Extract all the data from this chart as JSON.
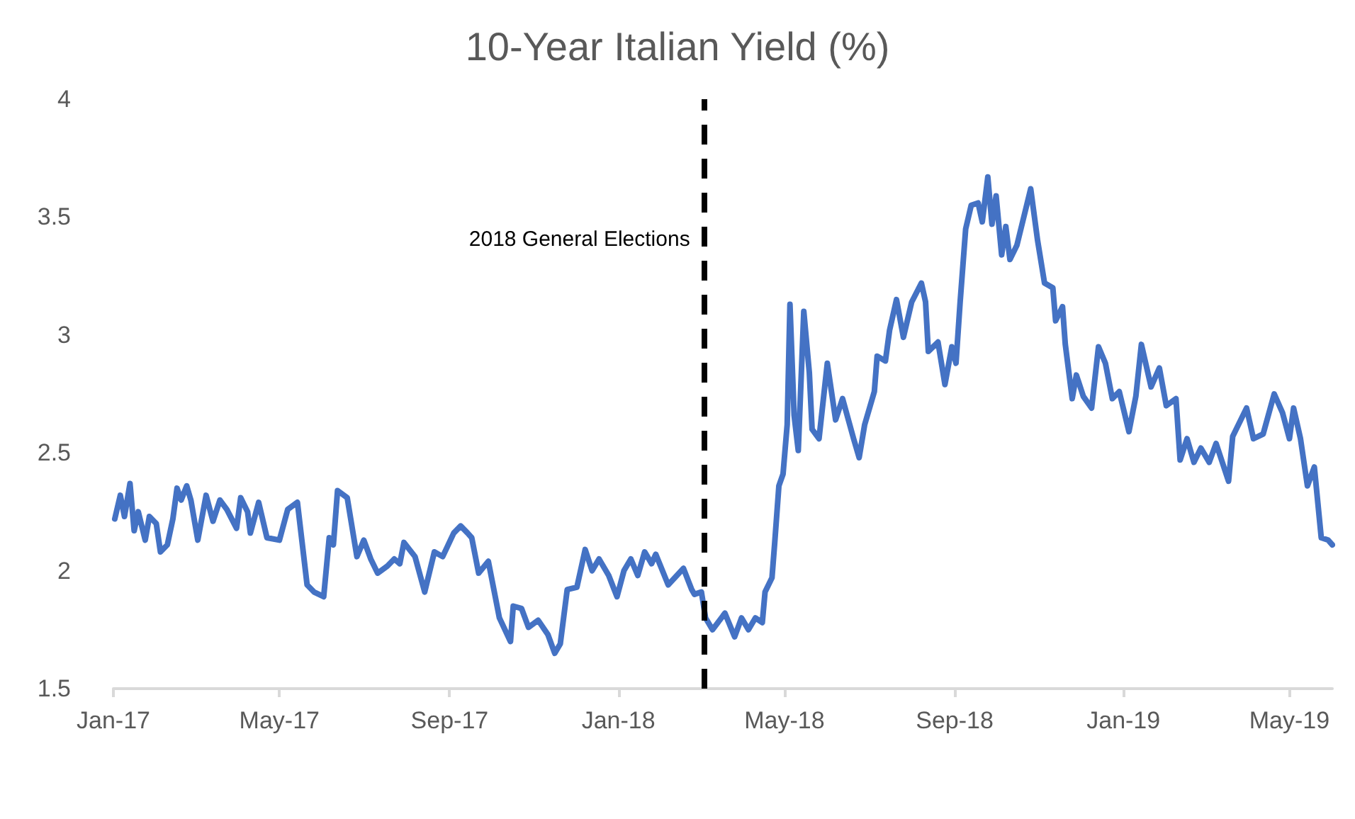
{
  "chart_data": {
    "type": "line",
    "title": "10-Year Italian Yield (%)",
    "xlim": [
      "2017-01-01",
      "2019-06-01"
    ],
    "xticks": [
      {
        "value": "2017-01-01",
        "label": "Jan-17"
      },
      {
        "value": "2017-05-01",
        "label": "May-17"
      },
      {
        "value": "2017-09-01",
        "label": "Sep-17"
      },
      {
        "value": "2018-01-01",
        "label": "Jan-18"
      },
      {
        "value": "2018-05-01",
        "label": "May-18"
      },
      {
        "value": "2018-09-01",
        "label": "Sep-18"
      },
      {
        "value": "2019-01-01",
        "label": "Jan-19"
      },
      {
        "value": "2019-05-01",
        "label": "May-19"
      }
    ],
    "ylim": [
      1.5,
      4
    ],
    "yticks": [
      1.5,
      2,
      2.5,
      3,
      3.5,
      4
    ],
    "marker": "none",
    "grid": false,
    "ref_lines": [
      {
        "axis": "x",
        "value": "2018-03-04",
        "label": "2018 General Elections",
        "color": "#000000",
        "line_style": "dashed"
      }
    ],
    "series": [
      {
        "color": "#4472c4",
        "x": [
          "2017-01-02",
          "2017-01-06",
          "2017-01-09",
          "2017-01-13",
          "2017-01-16",
          "2017-01-19",
          "2017-01-24",
          "2017-01-27",
          "2017-02-01",
          "2017-02-04",
          "2017-02-09",
          "2017-02-13",
          "2017-02-16",
          "2017-02-19",
          "2017-02-23",
          "2017-02-26",
          "2017-03-03",
          "2017-03-09",
          "2017-03-14",
          "2017-03-19",
          "2017-03-24",
          "2017-03-31",
          "2017-04-03",
          "2017-04-08",
          "2017-04-10",
          "2017-04-16",
          "2017-04-22",
          "2017-05-01",
          "2017-05-07",
          "2017-05-14",
          "2017-05-21",
          "2017-05-26",
          "2017-06-02",
          "2017-06-06",
          "2017-06-09",
          "2017-06-12",
          "2017-06-19",
          "2017-06-26",
          "2017-07-01",
          "2017-07-06",
          "2017-07-11",
          "2017-07-18",
          "2017-07-23",
          "2017-07-27",
          "2017-07-30",
          "2017-08-07",
          "2017-08-14",
          "2017-08-21",
          "2017-08-27",
          "2017-09-04",
          "2017-09-09",
          "2017-09-14",
          "2017-09-17",
          "2017-09-22",
          "2017-09-29",
          "2017-10-07",
          "2017-10-15",
          "2017-10-17",
          "2017-10-23",
          "2017-10-28",
          "2017-11-04",
          "2017-11-11",
          "2017-11-16",
          "2017-11-20",
          "2017-11-25",
          "2017-12-02",
          "2017-12-08",
          "2017-12-13",
          "2017-12-18",
          "2017-12-25",
          "2017-12-31",
          "2018-01-05",
          "2018-01-10",
          "2018-01-15",
          "2018-01-20",
          "2018-01-25",
          "2018-01-28",
          "2018-02-06",
          "2018-02-17",
          "2018-02-23",
          "2018-02-25",
          "2018-03-02",
          "2018-03-05",
          "2018-03-10",
          "2018-03-19",
          "2018-03-26",
          "2018-03-31",
          "2018-04-05",
          "2018-04-10",
          "2018-04-15",
          "2018-04-17",
          "2018-04-22",
          "2018-04-24",
          "2018-04-27",
          "2018-04-30",
          "2018-05-03",
          "2018-05-05",
          "2018-05-08",
          "2018-05-11",
          "2018-05-15",
          "2018-05-19",
          "2018-05-21",
          "2018-05-26",
          "2018-06-01",
          "2018-06-07",
          "2018-06-12",
          "2018-06-20",
          "2018-06-24",
          "2018-06-28",
          "2018-07-05",
          "2018-07-07",
          "2018-07-13",
          "2018-07-16",
          "2018-07-21",
          "2018-07-26",
          "2018-08-01",
          "2018-08-08",
          "2018-08-11",
          "2018-08-13",
          "2018-08-20",
          "2018-08-25",
          "2018-08-30",
          "2018-09-02",
          "2018-09-05",
          "2018-09-09",
          "2018-09-13",
          "2018-09-18",
          "2018-09-21",
          "2018-09-25",
          "2018-09-28",
          "2018-10-01",
          "2018-10-05",
          "2018-10-08",
          "2018-10-11",
          "2018-10-16",
          "2018-10-26",
          "2018-10-31",
          "2018-11-05",
          "2018-11-11",
          "2018-11-13",
          "2018-11-18",
          "2018-11-20",
          "2018-11-25",
          "2018-11-28",
          "2018-12-03",
          "2018-12-09",
          "2018-12-14",
          "2018-12-19",
          "2018-12-24",
          "2018-12-29",
          "2019-01-05",
          "2019-01-10",
          "2019-01-14",
          "2019-01-21",
          "2019-01-27",
          "2019-02-01",
          "2019-02-08",
          "2019-02-11",
          "2019-02-16",
          "2019-02-21",
          "2019-02-26",
          "2019-03-04",
          "2019-03-09",
          "2019-03-18",
          "2019-03-21",
          "2019-03-31",
          "2019-04-05",
          "2019-04-12",
          "2019-04-20",
          "2019-04-26",
          "2019-05-01",
          "2019-05-04",
          "2019-05-09",
          "2019-05-14",
          "2019-05-19",
          "2019-05-24",
          "2019-05-29",
          "2019-06-01"
        ],
        "values": [
          2.22,
          2.32,
          2.23,
          2.37,
          2.17,
          2.25,
          2.13,
          2.23,
          2.2,
          2.08,
          2.11,
          2.22,
          2.35,
          2.3,
          2.36,
          2.3,
          2.13,
          2.32,
          2.21,
          2.3,
          2.26,
          2.18,
          2.31,
          2.25,
          2.16,
          2.29,
          2.14,
          2.13,
          2.26,
          2.29,
          1.94,
          1.91,
          1.89,
          2.14,
          2.11,
          2.34,
          2.31,
          2.06,
          2.13,
          2.05,
          1.99,
          2.02,
          2.05,
          2.03,
          2.12,
          2.06,
          1.91,
          2.08,
          2.06,
          2.16,
          2.19,
          2.16,
          2.14,
          1.99,
          2.04,
          1.8,
          1.7,
          1.85,
          1.84,
          1.76,
          1.79,
          1.73,
          1.65,
          1.69,
          1.92,
          1.93,
          2.09,
          2,
          2.05,
          1.98,
          1.89,
          2,
          2.05,
          1.98,
          2.08,
          2.03,
          2.07,
          1.94,
          2.01,
          1.92,
          1.9,
          1.91,
          1.8,
          1.75,
          1.82,
          1.72,
          1.8,
          1.75,
          1.8,
          1.78,
          1.91,
          1.97,
          2.12,
          2.36,
          2.41,
          2.62,
          3.13,
          2.66,
          2.51,
          3.1,
          2.84,
          2.6,
          2.56,
          2.88,
          2.64,
          2.73,
          2.56,
          2.48,
          2.62,
          2.76,
          2.91,
          2.89,
          3.02,
          3.15,
          2.99,
          3.14,
          3.22,
          3.14,
          2.93,
          2.97,
          2.79,
          2.95,
          2.88,
          3.14,
          3.45,
          3.55,
          3.56,
          3.48,
          3.67,
          3.47,
          3.59,
          3.34,
          3.46,
          3.32,
          3.38,
          3.62,
          3.4,
          3.22,
          3.2,
          3.06,
          3.12,
          2.96,
          2.73,
          2.83,
          2.74,
          2.69,
          2.95,
          2.88,
          2.73,
          2.76,
          2.59,
          2.74,
          2.96,
          2.78,
          2.86,
          2.7,
          2.73,
          2.47,
          2.56,
          2.46,
          2.52,
          2.46,
          2.54,
          2.38,
          2.57,
          2.69,
          2.56,
          2.58,
          2.75,
          2.67,
          2.56,
          2.69,
          2.56,
          2.36,
          2.44,
          2.14,
          2.13,
          2.11
        ]
      }
    ]
  }
}
